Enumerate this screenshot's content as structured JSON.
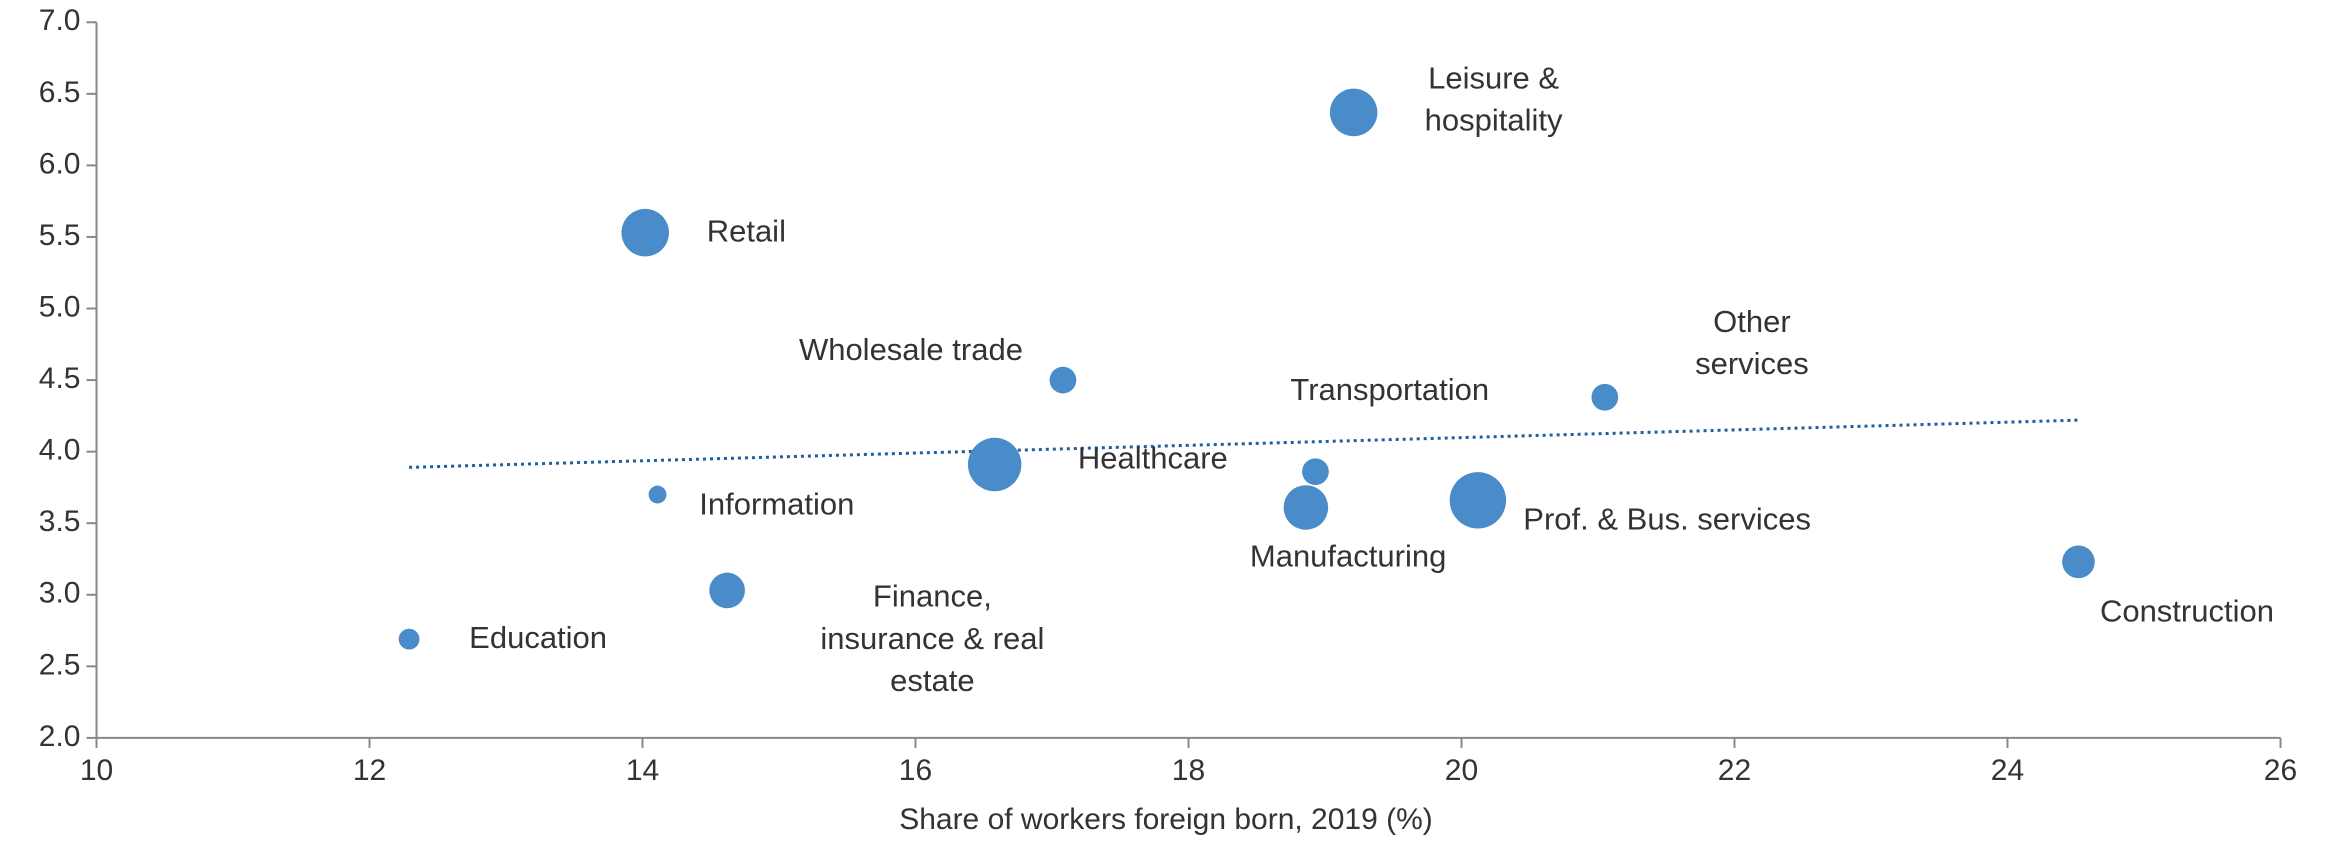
{
  "chart_data": {
    "type": "bubble",
    "x_label": "Share of workers foreign born, 2019 (%)",
    "x": [
      12.29,
      14.02,
      14.11,
      14.62,
      16.58,
      17.08,
      18.86,
      18.93,
      19.21,
      20.12,
      21.05,
      24.52
    ],
    "values": [
      2.69,
      5.53,
      3.7,
      3.03,
      3.91,
      4.5,
      3.61,
      3.86,
      6.37,
      3.66,
      4.38,
      3.23
    ],
    "sizes": [
      7,
      16,
      6,
      12,
      18,
      9,
      15,
      9,
      16,
      19,
      9,
      11
    ],
    "labels": [
      [
        "Education"
      ],
      [
        "Retail"
      ],
      [
        "Information"
      ],
      [
        "Finance,",
        "insurance & real",
        "estate"
      ],
      [
        "Healthcare"
      ],
      [
        "Wholesale trade"
      ],
      [
        "Manufacturing"
      ],
      [
        "Transportation"
      ],
      [
        "Leisure &",
        "hospitality"
      ],
      [
        "Prof. & Bus. services"
      ],
      [
        "Other",
        "services"
      ],
      [
        "Construction"
      ]
    ],
    "color": "#4a8bc9",
    "trendline": {
      "x": [
        12.29,
        24.52
      ],
      "y": [
        3.89,
        4.22
      ],
      "color": "#1f5f9f"
    },
    "xlim": [
      10,
      26
    ],
    "xticks": [
      10,
      12,
      14,
      16,
      18,
      20,
      22,
      24,
      26
    ],
    "ylim": [
      2,
      7
    ],
    "yticks": [
      {
        "value": 2,
        "label": "2.0"
      },
      2.5,
      {
        "value": 3,
        "label": "3.0"
      },
      3.5,
      {
        "value": 4,
        "label": "4.0"
      },
      4.5,
      {
        "value": 5,
        "label": "5.0"
      },
      5.5,
      {
        "value": 6,
        "label": "6.0"
      },
      6.5,
      {
        "value": 7,
        "label": "7.0"
      }
    ]
  }
}
